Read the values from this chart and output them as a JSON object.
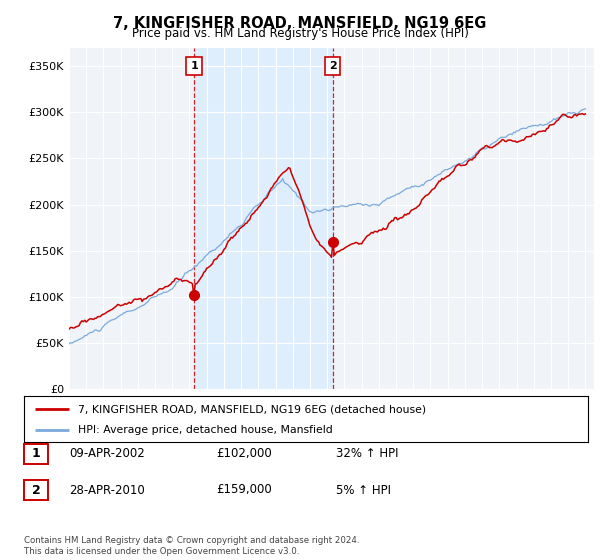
{
  "title": "7, KINGFISHER ROAD, MANSFIELD, NG19 6EG",
  "subtitle": "Price paid vs. HM Land Registry's House Price Index (HPI)",
  "ylabel_ticks": [
    "£0",
    "£50K",
    "£100K",
    "£150K",
    "£200K",
    "£250K",
    "£300K",
    "£350K"
  ],
  "ytick_values": [
    0,
    50000,
    100000,
    150000,
    200000,
    250000,
    300000,
    350000
  ],
  "ylim": [
    0,
    370000
  ],
  "sale1_date": 2002.27,
  "sale1_price": 102000,
  "sale2_date": 2010.32,
  "sale2_price": 159000,
  "legend_line1": "7, KINGFISHER ROAD, MANSFIELD, NG19 6EG (detached house)",
  "legend_line2": "HPI: Average price, detached house, Mansfield",
  "footnote": "Contains HM Land Registry data © Crown copyright and database right 2024.\nThis data is licensed under the Open Government Licence v3.0.",
  "red_color": "#cc0000",
  "blue_color": "#7aaadd",
  "shade_color": "#ddeeff",
  "bg_plot": "#f0f4f8",
  "bg_fig": "#ffffff",
  "grid_color": "#ffffff",
  "vline_color": "#cc0000",
  "label_badge_color": "#cc0000"
}
